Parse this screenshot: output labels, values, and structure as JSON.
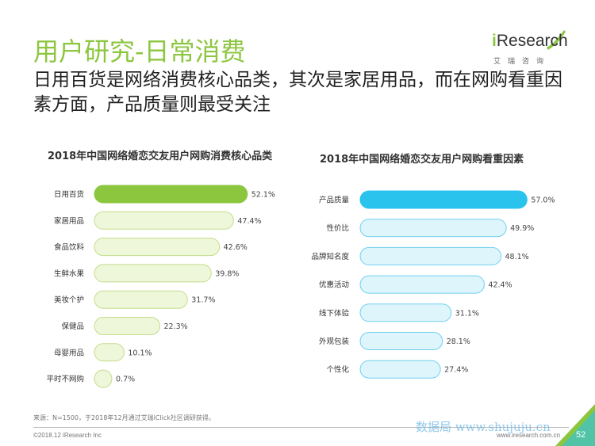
{
  "header": {
    "title": "用户研究-日常消费",
    "subtitle": "日用百货是网络消费核心品类，其次是家居用品，而在网购看重因素方面，产品质量则最受关注"
  },
  "logo": {
    "prefix": "i",
    "name": "Research",
    "sub": "艾瑞咨询"
  },
  "colors": {
    "green_accent": "#8cc63f",
    "green_light": "#eef7d9",
    "green_border": "#c3dd8c",
    "blue_accent": "#29c3ee",
    "blue_light": "#dff5fc",
    "blue_border": "#6fd0ee"
  },
  "chart_data": [
    {
      "type": "bar",
      "orientation": "horizontal",
      "title": "2018年中国网络婚恋交友用户网购消费核心品类",
      "categories": [
        "日用百货",
        "家居用品",
        "食品饮料",
        "生鲜水果",
        "美妆个护",
        "保健品",
        "母婴用品",
        "平时不网购"
      ],
      "values": [
        52.1,
        47.4,
        42.6,
        39.8,
        31.7,
        22.3,
        10.1,
        0.7
      ],
      "value_labels": [
        "52.1%",
        "47.4%",
        "42.6%",
        "39.8%",
        "31.7%",
        "22.3%",
        "10.1%",
        "0.7%"
      ],
      "unit": "%"
    },
    {
      "type": "bar",
      "orientation": "horizontal",
      "title": "2018年中国网络婚恋交友用户网购看重因素",
      "categories": [
        "产品质量",
        "性价比",
        "品牌知名度",
        "优惠活动",
        "线下体验",
        "外观包装",
        "个性化"
      ],
      "values": [
        57.0,
        49.9,
        48.1,
        42.4,
        31.1,
        28.1,
        27.4
      ],
      "value_labels": [
        "57.0%",
        "49.9%",
        "48.1%",
        "42.4%",
        "31.1%",
        "28.1%",
        "27.4%"
      ],
      "unit": "%"
    }
  ],
  "footer": {
    "source": "来源：N=1500，于2018年12月通过艾瑞iClick社区调研获得。",
    "copyright": "©2018.12 iResearch Inc",
    "website": "www.iresearch.com.cn",
    "watermark": "数据局 www.shujuju.cn",
    "page_number": "52"
  }
}
